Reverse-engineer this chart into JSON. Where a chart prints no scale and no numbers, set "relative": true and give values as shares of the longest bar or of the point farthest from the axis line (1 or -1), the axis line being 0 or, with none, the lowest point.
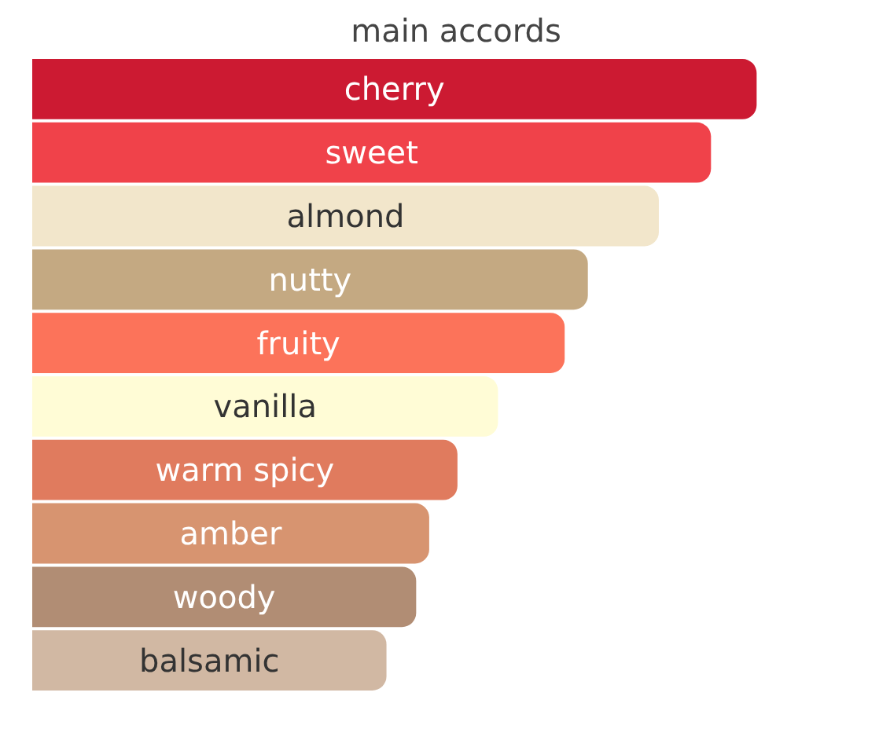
{
  "chart_data": {
    "type": "bar",
    "title": "main accords",
    "orientation": "horizontal",
    "relative": true,
    "categories": [
      "cherry",
      "sweet",
      "almond",
      "nutty",
      "fruity",
      "vanilla",
      "warm spicy",
      "amber",
      "woody",
      "balsamic"
    ],
    "values": [
      1,
      0.937,
      0.865,
      0.767,
      0.735,
      0.643,
      0.587,
      0.548,
      0.53,
      0.489
    ],
    "colors": [
      "#cc1a32",
      "#f0424a",
      "#f2e6cb",
      "#c4a982",
      "#fc735a",
      "#fffcd6",
      "#e07b5e",
      "#d79470",
      "#b18d74",
      "#d1b8a3"
    ]
  }
}
